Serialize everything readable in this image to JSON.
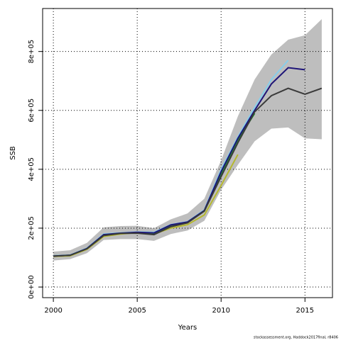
{
  "chart_data": {
    "type": "line",
    "xlabel": "Years",
    "ylabel": "SSB",
    "footnote": "stockassessment.org, Haddock2017final, r8406",
    "x": [
      2000,
      2001,
      2002,
      2003,
      2004,
      2005,
      2006,
      2007,
      2008,
      2009,
      2010,
      2011,
      2012,
      2013,
      2014,
      2015,
      2016
    ],
    "xlim": [
      1999.36,
      2016.64
    ],
    "xticks": [
      2000,
      2005,
      2010,
      2015
    ],
    "ylim": [
      -36000,
      946000
    ],
    "yticks": [
      {
        "value": 0,
        "label": "0e+00"
      },
      {
        "value": 200000,
        "label": "2e+05"
      },
      {
        "value": 400000,
        "label": "4e+05"
      },
      {
        "value": 600000,
        "label": "6e+05"
      },
      {
        "value": 800000,
        "label": "8e+05"
      }
    ],
    "grid": true,
    "band": {
      "color": "#bebebe",
      "upper": [
        120000,
        125000,
        150000,
        203000,
        207000,
        208000,
        200000,
        230000,
        250000,
        300000,
        430000,
        580000,
        705000,
        790000,
        840000,
        855000,
        910000
      ],
      "lower": [
        90000,
        95000,
        115000,
        160000,
        163000,
        163000,
        157000,
        180000,
        192000,
        225000,
        330000,
        415000,
        495000,
        538000,
        542000,
        505000,
        502000
      ]
    },
    "series": [
      {
        "color": "#b5b82e",
        "values": [
          104000,
          106000,
          128000,
          172000,
          180000,
          185000,
          180000,
          200000,
          212000,
          245000,
          345000,
          450000,
          null,
          null,
          null,
          null,
          null
        ]
      },
      {
        "color": "#1a8c2e",
        "values": [
          106000,
          108000,
          131000,
          176000,
          183000,
          186000,
          183000,
          210000,
          220000,
          258000,
          385000,
          500000,
          590000,
          null,
          null,
          null,
          null
        ]
      },
      {
        "color": "#87ceeb",
        "values": [
          106000,
          109000,
          132000,
          180000,
          184000,
          187000,
          186000,
          212000,
          222000,
          262000,
          400000,
          510000,
          610000,
          705000,
          770000,
          null,
          null
        ]
      },
      {
        "color": "#1e1478",
        "values": [
          105000,
          108000,
          131000,
          178000,
          183000,
          186000,
          184000,
          211000,
          221000,
          260000,
          392000,
          505000,
          600000,
          690000,
          745000,
          738000,
          null
        ]
      },
      {
        "color": "#3a3a3a",
        "values": [
          105000,
          108000,
          130000,
          175000,
          182000,
          183000,
          178000,
          205000,
          218000,
          258000,
          375000,
          490000,
          595000,
          650000,
          675000,
          655000,
          675000
        ]
      }
    ]
  }
}
